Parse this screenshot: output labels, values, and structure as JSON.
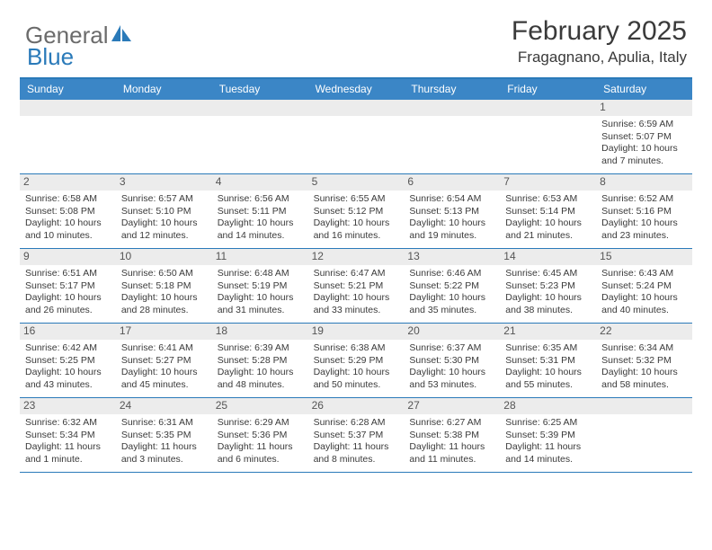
{
  "logo": {
    "word1": "General",
    "word2": "Blue"
  },
  "title": "February 2025",
  "subtitle": "Fragagnano, Apulia, Italy",
  "colors": {
    "header_bg": "#3b86c6",
    "border": "#2a7ab9",
    "daynum_bg": "#ececec",
    "text": "#3a3a3a",
    "logo_gray": "#6b6b6b",
    "logo_blue": "#2a7ab9"
  },
  "typography": {
    "title_fontsize": 30,
    "subtitle_fontsize": 17,
    "weekday_fontsize": 12,
    "cell_fontsize": 10.5
  },
  "weekdays": [
    "Sunday",
    "Monday",
    "Tuesday",
    "Wednesday",
    "Thursday",
    "Friday",
    "Saturday"
  ],
  "weeks": [
    [
      null,
      null,
      null,
      null,
      null,
      null,
      {
        "n": "1",
        "sunrise": "6:59 AM",
        "sunset": "5:07 PM",
        "daylight": "10 hours and 7 minutes."
      }
    ],
    [
      {
        "n": "2",
        "sunrise": "6:58 AM",
        "sunset": "5:08 PM",
        "daylight": "10 hours and 10 minutes."
      },
      {
        "n": "3",
        "sunrise": "6:57 AM",
        "sunset": "5:10 PM",
        "daylight": "10 hours and 12 minutes."
      },
      {
        "n": "4",
        "sunrise": "6:56 AM",
        "sunset": "5:11 PM",
        "daylight": "10 hours and 14 minutes."
      },
      {
        "n": "5",
        "sunrise": "6:55 AM",
        "sunset": "5:12 PM",
        "daylight": "10 hours and 16 minutes."
      },
      {
        "n": "6",
        "sunrise": "6:54 AM",
        "sunset": "5:13 PM",
        "daylight": "10 hours and 19 minutes."
      },
      {
        "n": "7",
        "sunrise": "6:53 AM",
        "sunset": "5:14 PM",
        "daylight": "10 hours and 21 minutes."
      },
      {
        "n": "8",
        "sunrise": "6:52 AM",
        "sunset": "5:16 PM",
        "daylight": "10 hours and 23 minutes."
      }
    ],
    [
      {
        "n": "9",
        "sunrise": "6:51 AM",
        "sunset": "5:17 PM",
        "daylight": "10 hours and 26 minutes."
      },
      {
        "n": "10",
        "sunrise": "6:50 AM",
        "sunset": "5:18 PM",
        "daylight": "10 hours and 28 minutes."
      },
      {
        "n": "11",
        "sunrise": "6:48 AM",
        "sunset": "5:19 PM",
        "daylight": "10 hours and 31 minutes."
      },
      {
        "n": "12",
        "sunrise": "6:47 AM",
        "sunset": "5:21 PM",
        "daylight": "10 hours and 33 minutes."
      },
      {
        "n": "13",
        "sunrise": "6:46 AM",
        "sunset": "5:22 PM",
        "daylight": "10 hours and 35 minutes."
      },
      {
        "n": "14",
        "sunrise": "6:45 AM",
        "sunset": "5:23 PM",
        "daylight": "10 hours and 38 minutes."
      },
      {
        "n": "15",
        "sunrise": "6:43 AM",
        "sunset": "5:24 PM",
        "daylight": "10 hours and 40 minutes."
      }
    ],
    [
      {
        "n": "16",
        "sunrise": "6:42 AM",
        "sunset": "5:25 PM",
        "daylight": "10 hours and 43 minutes."
      },
      {
        "n": "17",
        "sunrise": "6:41 AM",
        "sunset": "5:27 PM",
        "daylight": "10 hours and 45 minutes."
      },
      {
        "n": "18",
        "sunrise": "6:39 AM",
        "sunset": "5:28 PM",
        "daylight": "10 hours and 48 minutes."
      },
      {
        "n": "19",
        "sunrise": "6:38 AM",
        "sunset": "5:29 PM",
        "daylight": "10 hours and 50 minutes."
      },
      {
        "n": "20",
        "sunrise": "6:37 AM",
        "sunset": "5:30 PM",
        "daylight": "10 hours and 53 minutes."
      },
      {
        "n": "21",
        "sunrise": "6:35 AM",
        "sunset": "5:31 PM",
        "daylight": "10 hours and 55 minutes."
      },
      {
        "n": "22",
        "sunrise": "6:34 AM",
        "sunset": "5:32 PM",
        "daylight": "10 hours and 58 minutes."
      }
    ],
    [
      {
        "n": "23",
        "sunrise": "6:32 AM",
        "sunset": "5:34 PM",
        "daylight": "11 hours and 1 minute."
      },
      {
        "n": "24",
        "sunrise": "6:31 AM",
        "sunset": "5:35 PM",
        "daylight": "11 hours and 3 minutes."
      },
      {
        "n": "25",
        "sunrise": "6:29 AM",
        "sunset": "5:36 PM",
        "daylight": "11 hours and 6 minutes."
      },
      {
        "n": "26",
        "sunrise": "6:28 AM",
        "sunset": "5:37 PM",
        "daylight": "11 hours and 8 minutes."
      },
      {
        "n": "27",
        "sunrise": "6:27 AM",
        "sunset": "5:38 PM",
        "daylight": "11 hours and 11 minutes."
      },
      {
        "n": "28",
        "sunrise": "6:25 AM",
        "sunset": "5:39 PM",
        "daylight": "11 hours and 14 minutes."
      },
      null
    ]
  ],
  "labels": {
    "sunrise": "Sunrise:",
    "sunset": "Sunset:",
    "daylight": "Daylight:"
  }
}
